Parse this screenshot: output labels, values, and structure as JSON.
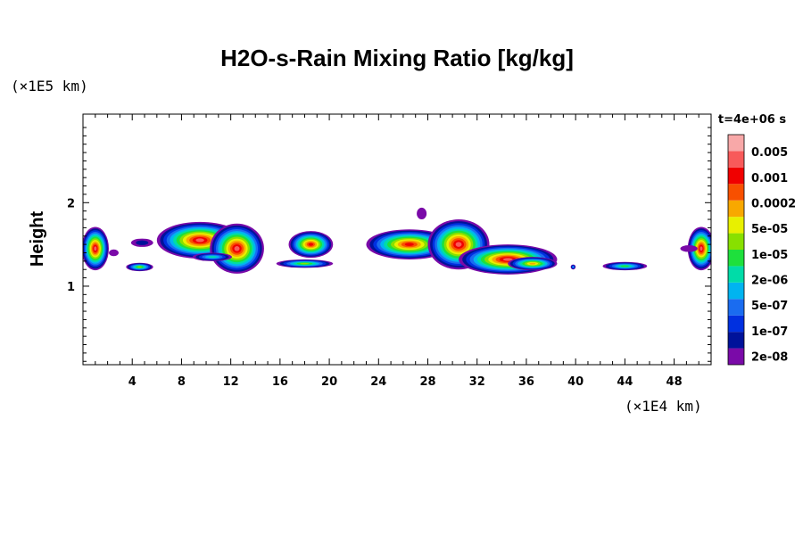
{
  "chart_data": {
    "type": "heatmap",
    "title": "H2O-s-Rain Mixing Ratio [kg/kg]",
    "ylabel": "Height",
    "x_scale_label": "(×1E4 km)",
    "y_scale_label": "(×1E5 km)",
    "time_label": "t=4e+06 s",
    "xlim": [
      0,
      51
    ],
    "ylim": [
      0.06,
      3.06
    ],
    "x_ticks": [
      "4",
      "8",
      "12",
      "16",
      "20",
      "24",
      "28",
      "32",
      "36",
      "40",
      "44",
      "48"
    ],
    "y_ticks": [
      "1",
      "2"
    ],
    "levels": [
      "2e-08",
      "1e-07",
      "5e-07",
      "2e-06",
      "1e-05",
      "5e-05",
      "0.0002",
      "0.001",
      "0.005"
    ],
    "level_colors": [
      "#7a0aa8",
      "#00129a",
      "#0030e0",
      "#1a6cf0",
      "#00b4f0",
      "#00dca8",
      "#1ee03c",
      "#88e000",
      "#e8f000",
      "#f8a800",
      "#f85000",
      "#f00000",
      "#f85a5a",
      "#f8a8a8"
    ],
    "cells": [
      {
        "x": 1.0,
        "y": 1.45,
        "rx": 1.1,
        "ry": 0.26,
        "level": 12
      },
      {
        "x": 2.5,
        "y": 1.4,
        "rx": 0.4,
        "ry": 0.04,
        "level": 0
      },
      {
        "x": 4.8,
        "y": 1.52,
        "rx": 0.9,
        "ry": 0.05,
        "level": 1
      },
      {
        "x": 4.6,
        "y": 1.23,
        "rx": 1.1,
        "ry": 0.05,
        "level": 7
      },
      {
        "x": 9.5,
        "y": 1.55,
        "rx": 3.5,
        "ry": 0.22,
        "level": 12
      },
      {
        "x": 12.5,
        "y": 1.45,
        "rx": 2.2,
        "ry": 0.3,
        "level": 12
      },
      {
        "x": 10.5,
        "y": 1.35,
        "rx": 1.6,
        "ry": 0.05,
        "level": 5
      },
      {
        "x": 18.5,
        "y": 1.5,
        "rx": 1.8,
        "ry": 0.16,
        "level": 11
      },
      {
        "x": 18.0,
        "y": 1.27,
        "rx": 2.3,
        "ry": 0.05,
        "level": 7
      },
      {
        "x": 26.5,
        "y": 1.5,
        "rx": 3.5,
        "ry": 0.18,
        "level": 11
      },
      {
        "x": 30.5,
        "y": 1.5,
        "rx": 2.5,
        "ry": 0.3,
        "level": 12
      },
      {
        "x": 34.5,
        "y": 1.32,
        "rx": 4.0,
        "ry": 0.18,
        "level": 12
      },
      {
        "x": 36.5,
        "y": 1.27,
        "rx": 2.0,
        "ry": 0.08,
        "level": 9
      },
      {
        "x": 27.5,
        "y": 1.87,
        "rx": 0.4,
        "ry": 0.07,
        "level": 0
      },
      {
        "x": 39.8,
        "y": 1.23,
        "rx": 0.2,
        "ry": 0.03,
        "level": 4
      },
      {
        "x": 44.0,
        "y": 1.24,
        "rx": 1.8,
        "ry": 0.05,
        "level": 6
      },
      {
        "x": 50.2,
        "y": 1.45,
        "rx": 1.1,
        "ry": 0.26,
        "level": 12
      },
      {
        "x": 49.2,
        "y": 1.45,
        "rx": 0.7,
        "ry": 0.04,
        "level": 0
      }
    ]
  }
}
